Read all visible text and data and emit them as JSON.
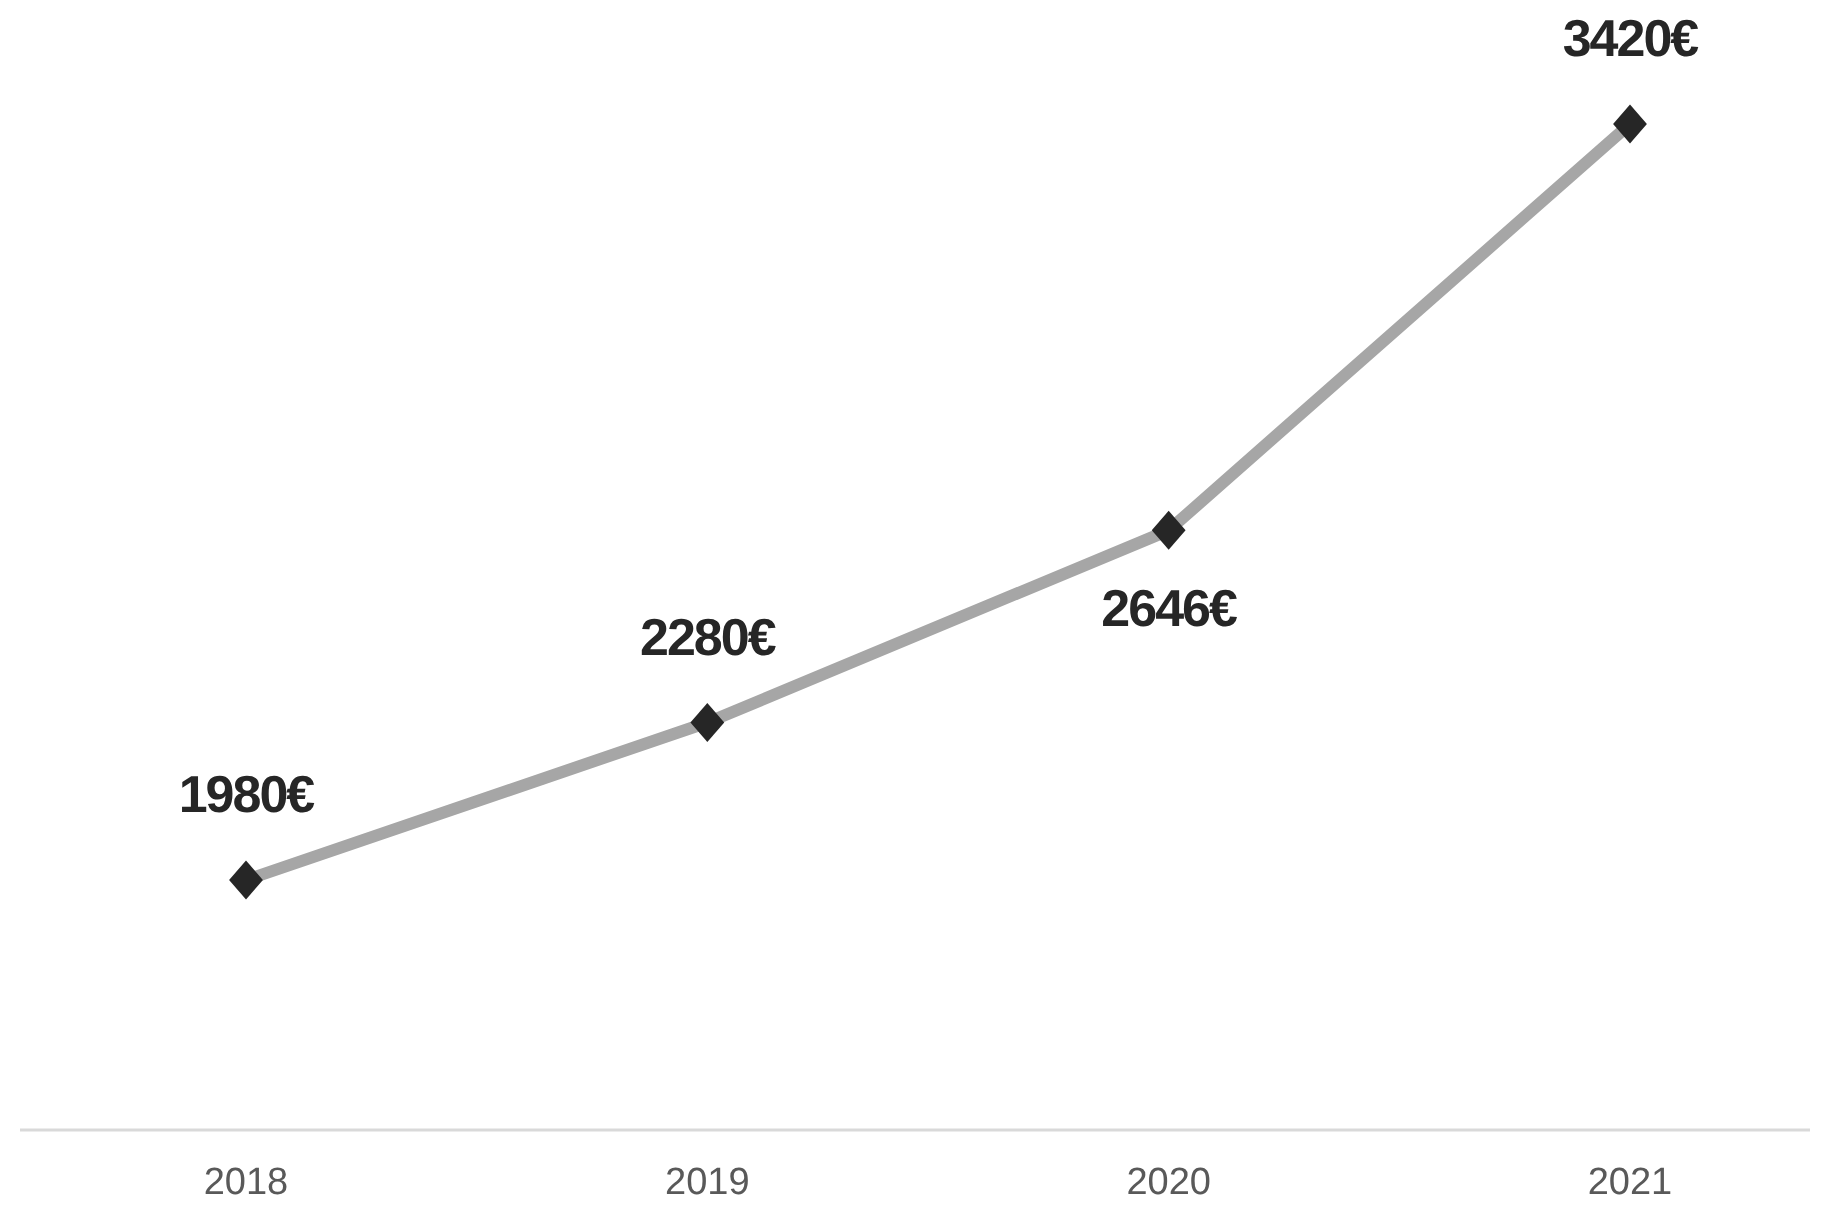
{
  "chart_data": {
    "type": "line",
    "categories": [
      "2018",
      "2019",
      "2020",
      "2021"
    ],
    "series": [
      {
        "color": "#a6a6a6",
        "values": [
          1980,
          2280,
          2646,
          3420
        ],
        "value_labels": [
          "1980€",
          "2280€",
          "2646€",
          "3420€"
        ]
      }
    ],
    "marker": "diamond"
  }
}
